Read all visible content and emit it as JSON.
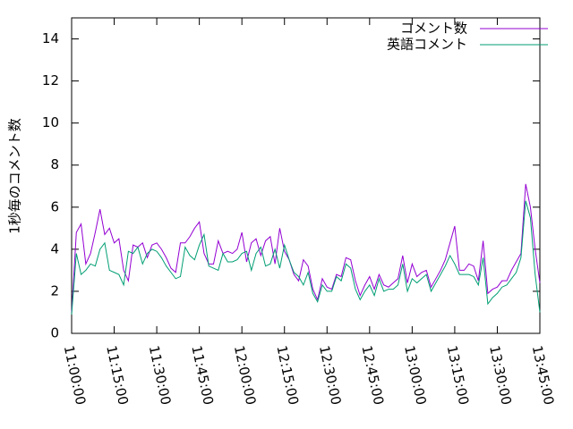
{
  "chart_data": {
    "type": "line",
    "y_label": "1秒毎のコメント数",
    "legend": "top-right",
    "xlim": [
      "11:00:00",
      "13:45:00"
    ],
    "xticks": [
      "11:00:00",
      "11:15:00",
      "11:30:00",
      "11:45:00",
      "12:00:00",
      "12:15:00",
      "12:30:00",
      "12:45:00",
      "13:00:00",
      "13:15:00",
      "13:30:00",
      "13:45:00"
    ],
    "ylim": [
      0,
      15
    ],
    "yticks": [
      0,
      2,
      4,
      6,
      8,
      10,
      12,
      14
    ],
    "x": [
      "11:00:00",
      "11:01:40",
      "11:03:20",
      "11:05:00",
      "11:06:40",
      "11:08:20",
      "11:10:00",
      "11:11:40",
      "11:13:20",
      "11:15:00",
      "11:16:40",
      "11:18:20",
      "11:20:00",
      "11:21:40",
      "11:23:20",
      "11:25:00",
      "11:26:40",
      "11:28:20",
      "11:30:00",
      "11:31:40",
      "11:33:20",
      "11:35:00",
      "11:36:40",
      "11:38:20",
      "11:40:00",
      "11:41:40",
      "11:43:20",
      "11:45:00",
      "11:46:40",
      "11:48:20",
      "11:50:00",
      "11:51:40",
      "11:53:20",
      "11:55:00",
      "11:56:40",
      "11:58:20",
      "12:00:00",
      "12:01:40",
      "12:03:20",
      "12:05:00",
      "12:06:40",
      "12:08:20",
      "12:10:00",
      "12:11:40",
      "12:13:20",
      "12:15:00",
      "12:16:40",
      "12:18:20",
      "12:20:00",
      "12:21:40",
      "12:23:20",
      "12:25:00",
      "12:26:40",
      "12:28:20",
      "12:30:00",
      "12:31:40",
      "12:33:20",
      "12:35:00",
      "12:36:40",
      "12:38:20",
      "12:40:00",
      "12:41:40",
      "12:43:20",
      "12:45:00",
      "12:46:40",
      "12:48:20",
      "12:50:00",
      "12:51:40",
      "12:53:20",
      "12:55:00",
      "12:56:40",
      "12:58:20",
      "13:00:00",
      "13:01:40",
      "13:03:20",
      "13:05:00",
      "13:06:40",
      "13:08:20",
      "13:10:00",
      "13:11:40",
      "13:13:20",
      "13:15:00",
      "13:16:40",
      "13:18:20",
      "13:20:00",
      "13:21:40",
      "13:23:20",
      "13:25:00",
      "13:26:40",
      "13:28:20",
      "13:30:00",
      "13:31:40",
      "13:33:20",
      "13:35:00",
      "13:36:40",
      "13:38:20",
      "13:40:00",
      "13:41:40",
      "13:43:20",
      "13:45:00"
    ],
    "series": [
      {
        "name": "コメント数",
        "color": "#9400d3",
        "values": [
          1.0,
          4.8,
          5.2,
          3.3,
          3.8,
          4.8,
          5.9,
          4.7,
          5.0,
          4.3,
          4.5,
          3.0,
          2.5,
          4.2,
          4.1,
          4.3,
          3.6,
          4.2,
          4.3,
          4.0,
          3.6,
          3.1,
          2.9,
          4.3,
          4.3,
          4.6,
          5.0,
          5.3,
          3.8,
          3.3,
          3.3,
          4.4,
          3.8,
          3.9,
          3.8,
          4.0,
          4.8,
          3.4,
          4.3,
          4.5,
          3.7,
          4.4,
          4.6,
          3.3,
          5.0,
          3.9,
          3.5,
          2.8,
          2.5,
          3.5,
          3.2,
          2.1,
          1.6,
          2.6,
          2.2,
          2.1,
          2.8,
          2.7,
          3.6,
          3.5,
          2.5,
          1.8,
          2.3,
          2.7,
          2.1,
          2.8,
          2.3,
          2.2,
          2.4,
          2.6,
          3.7,
          2.4,
          3.3,
          2.7,
          2.9,
          3.0,
          2.2,
          2.6,
          3.0,
          3.5,
          4.3,
          5.1,
          3.0,
          3.0,
          3.3,
          3.2,
          2.5,
          4.4,
          1.9,
          2.1,
          2.2,
          2.5,
          2.5,
          3.0,
          3.4,
          3.8,
          7.1,
          6.0,
          4.0,
          2.4
        ]
      },
      {
        "name": "英語コメント",
        "color": "#009e73",
        "values": [
          0.9,
          3.8,
          2.8,
          3.0,
          3.3,
          3.2,
          4.0,
          4.3,
          3.0,
          2.9,
          2.8,
          2.3,
          3.9,
          3.8,
          4.1,
          3.3,
          3.8,
          4.0,
          3.9,
          3.6,
          3.2,
          2.9,
          2.6,
          2.7,
          4.1,
          3.7,
          3.5,
          4.2,
          4.7,
          3.2,
          3.1,
          3.0,
          3.8,
          3.4,
          3.4,
          3.5,
          3.8,
          3.9,
          3.0,
          3.8,
          4.1,
          3.2,
          3.3,
          4.0,
          3.1,
          4.2,
          3.5,
          2.9,
          2.7,
          2.3,
          2.9,
          1.9,
          1.5,
          2.3,
          2.0,
          2.0,
          2.7,
          2.5,
          3.3,
          3.1,
          2.1,
          1.6,
          2.0,
          2.3,
          1.8,
          2.6,
          2.0,
          2.1,
          2.1,
          2.3,
          3.3,
          2.0,
          2.6,
          2.4,
          2.6,
          2.8,
          2.0,
          2.4,
          2.8,
          3.2,
          3.7,
          3.3,
          2.8,
          2.8,
          2.8,
          2.7,
          2.3,
          3.6,
          1.4,
          1.7,
          1.9,
          2.2,
          2.3,
          2.6,
          2.9,
          3.6,
          6.3,
          5.5,
          2.8,
          1.0
        ]
      }
    ]
  }
}
